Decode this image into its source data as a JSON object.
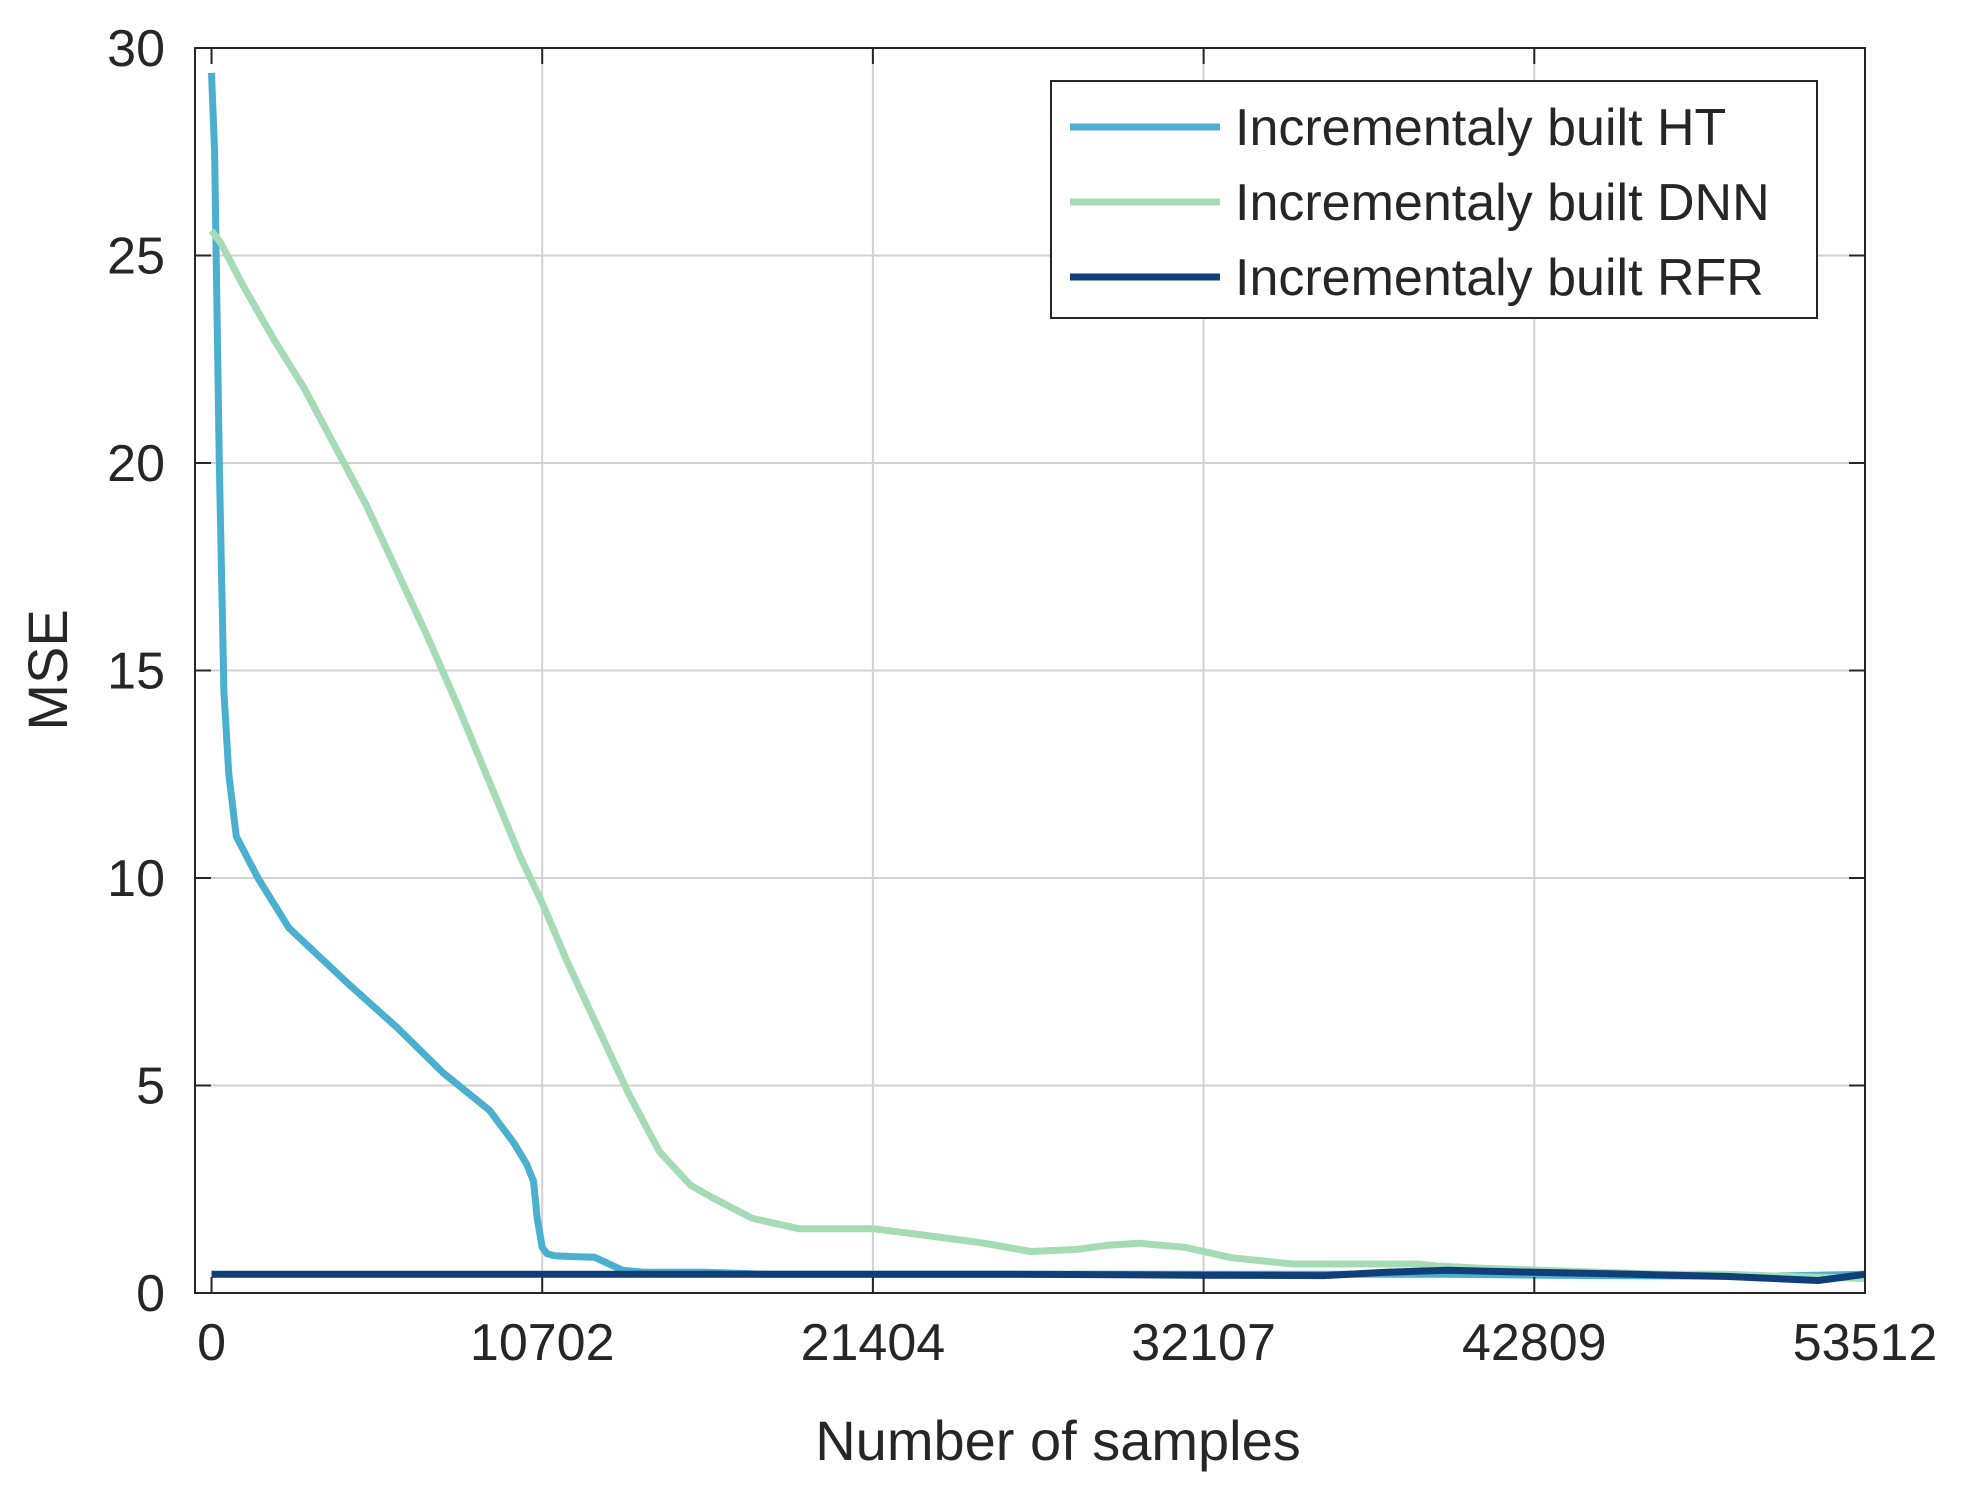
{
  "chart_data": {
    "type": "line",
    "title": "",
    "xlabel": "Number of samples",
    "ylabel": "MSE",
    "xlim": [
      -535,
      53512
    ],
    "ylim": [
      0,
      30
    ],
    "x_ticks": [
      0,
      10702,
      21404,
      32107,
      42809,
      53512
    ],
    "x_tick_labels": [
      "0",
      "10702",
      "21404",
      "32107",
      "42809",
      "53512"
    ],
    "y_ticks": [
      0,
      5,
      10,
      15,
      20,
      25,
      30
    ],
    "y_tick_labels": [
      "0",
      "5",
      "10",
      "15",
      "20",
      "25",
      "30"
    ],
    "grid": true,
    "legend_position": "top-right",
    "series": [
      {
        "name": "Incrementaly built HT",
        "color": "#4bb0d0",
        "x": [
          0,
          100,
          250,
          400,
          560,
          800,
          1500,
          2500,
          3500,
          4500,
          6000,
          7500,
          9000,
          9800,
          10200,
          10420,
          10540,
          10700,
          10850,
          11100,
          11600,
          12400,
          13300,
          14000,
          14600,
          16000,
          18000,
          21404,
          25000,
          30000,
          35000,
          40000,
          45000,
          50000,
          53512
        ],
        "y": [
          29.4,
          27.5,
          20,
          14.5,
          12.5,
          11,
          10,
          8.8,
          8.1,
          7.4,
          6.4,
          5.3,
          4.4,
          3.6,
          3.1,
          2.7,
          1.8,
          1.1,
          0.95,
          0.9,
          0.88,
          0.86,
          0.55,
          0.5,
          0.5,
          0.5,
          0.45,
          0.45,
          0.45,
          0.45,
          0.45,
          0.45,
          0.42,
          0.4,
          0.45
        ]
      },
      {
        "name": "Incrementaly built DNN",
        "color": "#a5dcb5",
        "x": [
          0,
          300,
          1000,
          2000,
          3000,
          4000,
          5000,
          6000,
          7000,
          8000,
          9000,
          10000,
          10702,
          11500,
          12500,
          13500,
          14500,
          15500,
          16200,
          17500,
          19000,
          21404,
          23000,
          25000,
          26500,
          28000,
          29000,
          30000,
          31500,
          33000,
          35000,
          37000,
          39000,
          39700,
          41000,
          43000,
          45000,
          47000,
          49000,
          51000,
          53512
        ],
        "y": [
          25.6,
          25.3,
          24.3,
          23.0,
          21.8,
          20.4,
          19.0,
          17.4,
          15.8,
          14.1,
          12.3,
          10.5,
          9.4,
          8.0,
          6.4,
          4.8,
          3.4,
          2.6,
          2.3,
          1.8,
          1.55,
          1.55,
          1.4,
          1.2,
          1.0,
          1.05,
          1.15,
          1.2,
          1.1,
          0.85,
          0.7,
          0.7,
          0.7,
          0.65,
          0.6,
          0.55,
          0.5,
          0.45,
          0.45,
          0.4,
          0.35
        ]
      },
      {
        "name": "Incrementaly built RFR",
        "color": "#0f3e78",
        "x": [
          0,
          5000,
          10702,
          16000,
          21404,
          26000,
          32107,
          36000,
          38000,
          40000,
          42809,
          46000,
          49000,
          52000,
          53512
        ],
        "y": [
          0.45,
          0.45,
          0.45,
          0.45,
          0.45,
          0.45,
          0.43,
          0.42,
          0.5,
          0.55,
          0.5,
          0.45,
          0.4,
          0.3,
          0.45
        ]
      }
    ]
  }
}
